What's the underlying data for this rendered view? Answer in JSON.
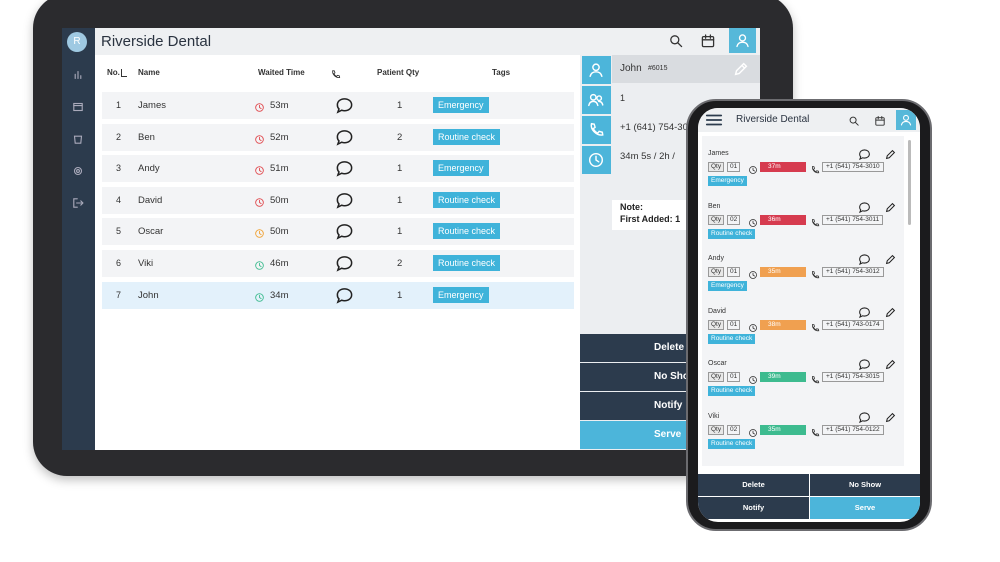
{
  "tablet": {
    "avatar": "R",
    "title": "Riverside Dental",
    "columns": [
      "No.",
      "Name",
      "Waited Time",
      "Patient Qty",
      "Tags"
    ],
    "rows": [
      {
        "no": "1",
        "name": "James",
        "waited": "53m",
        "status": "#e0474c",
        "qty": "1",
        "tag": "Emergency"
      },
      {
        "no": "2",
        "name": "Ben",
        "waited": "52m",
        "status": "#e0474c",
        "qty": "2",
        "tag": "Routine check"
      },
      {
        "no": "3",
        "name": "Andy",
        "waited": "51m",
        "status": "#e0474c",
        "qty": "1",
        "tag": "Emergency"
      },
      {
        "no": "4",
        "name": "David",
        "waited": "50m",
        "status": "#e0474c",
        "qty": "1",
        "tag": "Routine check"
      },
      {
        "no": "5",
        "name": "Oscar",
        "waited": "50m",
        "status": "#f0a030",
        "qty": "1",
        "tag": "Routine check"
      },
      {
        "no": "6",
        "name": "Viki",
        "waited": "46m",
        "status": "#3dbb8f",
        "qty": "2",
        "tag": "Routine check"
      },
      {
        "no": "7",
        "name": "John",
        "waited": "34m",
        "status": "#3dbb8f",
        "qty": "1",
        "tag": "Emergency"
      }
    ],
    "detail": {
      "name": "John",
      "id": "#6015",
      "qty": "1",
      "phone": "+1 (641) 754-30",
      "time": "34m 5s  / 2h /",
      "note_label": "Note:",
      "first_added": "First Added: 1"
    },
    "actions": [
      "Delete",
      "No Show",
      "Notify",
      "Serve"
    ]
  },
  "phone": {
    "title": "Riverside Dental",
    "qty_label": "Qty",
    "cards": [
      {
        "name": "James",
        "qty": "01",
        "waited": "37m",
        "status": "#d63b4f",
        "phone": "+1 (541) 754-3010",
        "tag": "Emergency"
      },
      {
        "name": "Ben",
        "qty": "02",
        "waited": "36m",
        "status": "#d63b4f",
        "phone": "+1 (541) 754-3011",
        "tag": "Routine check"
      },
      {
        "name": "Andy",
        "qty": "01",
        "waited": "35m",
        "status": "#f0a050",
        "phone": "+1 (541) 754-3012",
        "tag": "Emergency"
      },
      {
        "name": "David",
        "qty": "01",
        "waited": "38m",
        "status": "#f0a050",
        "phone": "+1 (541) 743-0174",
        "tag": "Routine check"
      },
      {
        "name": "Oscar",
        "qty": "01",
        "waited": "39m",
        "status": "#3dbb8f",
        "phone": "+1 (541) 754-3015",
        "tag": "Routine check"
      },
      {
        "name": "Viki",
        "qty": "02",
        "waited": "35m",
        "status": "#3dbb8f",
        "phone": "+1 (541) 754-0122",
        "tag": "Routine check"
      }
    ],
    "actions": [
      "Delete",
      "No Show",
      "Notify",
      "Serve"
    ]
  }
}
